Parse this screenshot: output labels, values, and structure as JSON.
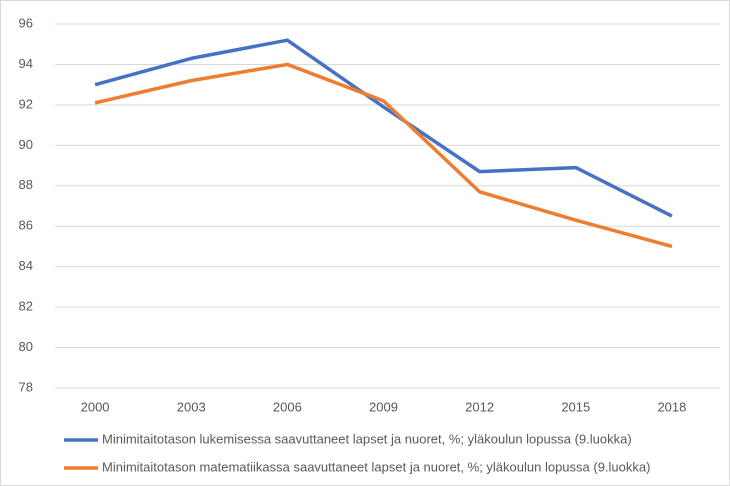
{
  "chart_data": {
    "type": "line",
    "categories": [
      "2000",
      "2003",
      "2006",
      "2009",
      "2012",
      "2015",
      "2018"
    ],
    "series": [
      {
        "name": "Minimitaitotason lukemisessa saavuttaneet lapset ja nuoret, %; yläkoulun lopussa (9.luokka)",
        "color": "#4472c4",
        "values": [
          93.0,
          94.3,
          95.2,
          91.9,
          88.7,
          88.9,
          86.5
        ]
      },
      {
        "name": "Minimitaitotason matematiikassa saavuttaneet lapset ja nuoret, %; yläkoulun lopussa (9.luokka)",
        "color": "#ed7d31",
        "values": [
          92.1,
          93.2,
          94.0,
          92.2,
          87.7,
          86.3,
          85.0
        ]
      }
    ],
    "ylim": [
      78,
      96
    ],
    "yticks": [
      78,
      80,
      82,
      84,
      86,
      88,
      90,
      92,
      94,
      96
    ],
    "grid": true,
    "legend": "bottom"
  }
}
